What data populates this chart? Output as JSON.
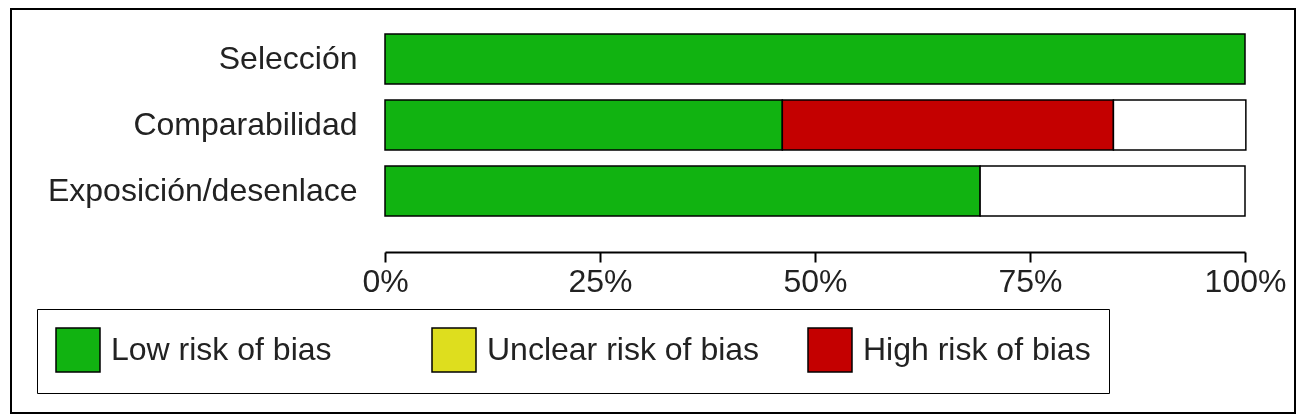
{
  "chart_data": {
    "type": "bar",
    "orientation": "horizontal",
    "stacked": true,
    "categories": [
      "Selección",
      "Comparabilidad",
      "Exposición/desenlace"
    ],
    "series": [
      {
        "name": "Low risk of bias",
        "color": "#11b311",
        "values": [
          100,
          46.2,
          69.2
        ]
      },
      {
        "name": "Unclear risk of bias",
        "color": "#dede1e",
        "values": [
          0,
          0,
          0
        ]
      },
      {
        "name": "High risk of bias",
        "color": "#c40000",
        "values": [
          0,
          38.5,
          0
        ]
      },
      {
        "color": "#ffffff",
        "values": [
          0,
          15.4,
          30.8
        ]
      }
    ],
    "xlim": [
      0,
      100
    ],
    "xticks": [
      {
        "value": 0,
        "label": "0%"
      },
      {
        "value": 25,
        "label": "25%"
      },
      {
        "value": 50,
        "label": "50%"
      },
      {
        "value": 75,
        "label": "75%"
      },
      {
        "value": 100,
        "label": "100%"
      }
    ],
    "legend": "bottom"
  }
}
